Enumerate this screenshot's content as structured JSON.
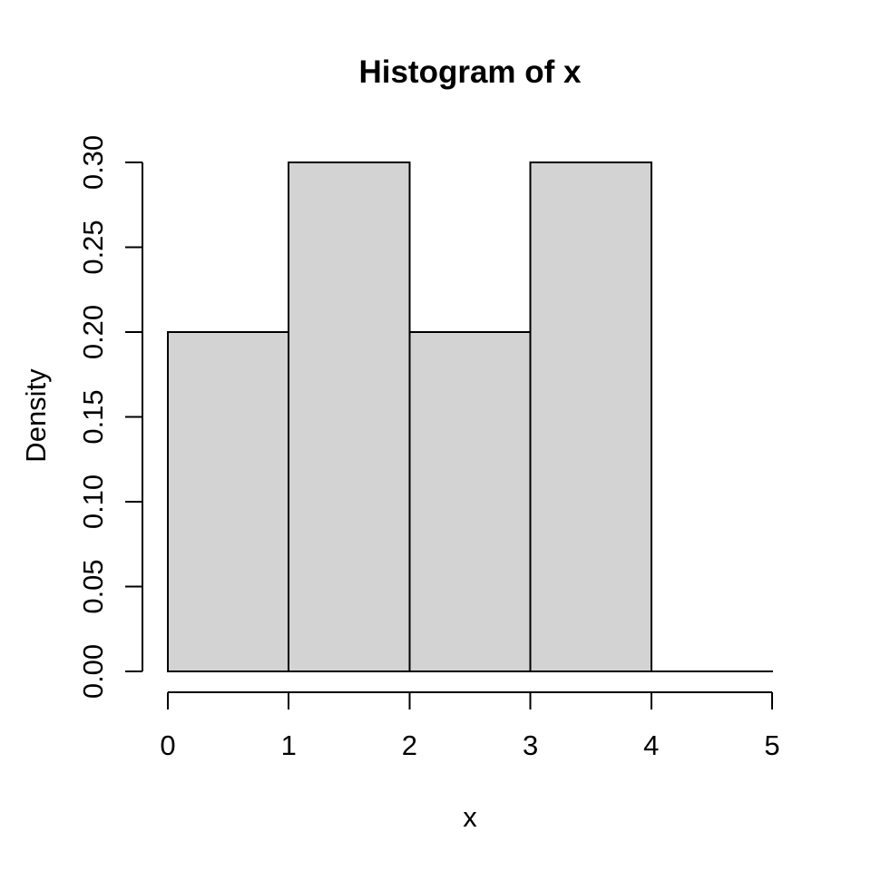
{
  "chart_data": {
    "type": "bar",
    "subtype": "histogram",
    "title": "Histogram of x",
    "xlabel": "x",
    "ylabel": "Density",
    "bin_edges": [
      0,
      1,
      2,
      3,
      4,
      5
    ],
    "densities": [
      0.2,
      0.3,
      0.2,
      0.3,
      0.0
    ],
    "xlim": [
      0,
      5
    ],
    "ylim": [
      0,
      0.3
    ],
    "x_ticks": [
      0,
      1,
      2,
      3,
      4,
      5
    ],
    "x_tick_labels": [
      "0",
      "1",
      "2",
      "3",
      "4",
      "5"
    ],
    "y_ticks": [
      0,
      0.05,
      0.1,
      0.15,
      0.2,
      0.25,
      0.3
    ],
    "y_tick_labels": [
      "0.00",
      "0.05",
      "0.10",
      "0.15",
      "0.20",
      "0.25",
      "0.30"
    ],
    "grid": false,
    "legend": null,
    "colors": {
      "bar_fill": "#D3D3D3",
      "bar_border": "#000000",
      "axis": "#000000",
      "text": "#000000",
      "background": "#FFFFFF"
    }
  }
}
